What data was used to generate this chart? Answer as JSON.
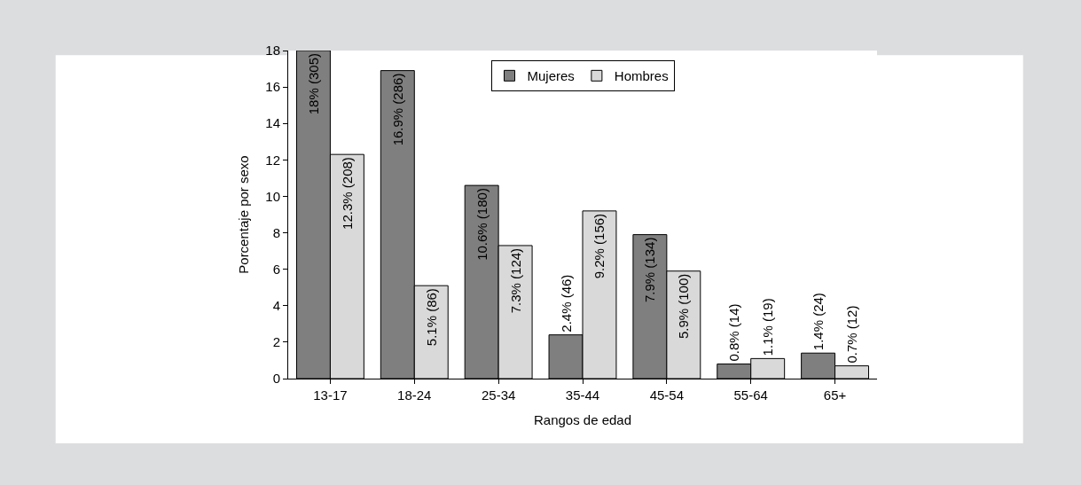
{
  "chart_data": {
    "type": "bar",
    "xlabel": "Rangos de edad",
    "ylabel": "Porcentaje por sexo",
    "categories": [
      "13-17",
      "18-24",
      "25-34",
      "35-44",
      "45-54",
      "55-64",
      "65+"
    ],
    "series": [
      {
        "name": "Mujeres",
        "color": "#7f7f7f",
        "values": [
          18,
          16.9,
          10.6,
          2.4,
          7.9,
          0.8,
          1.4
        ],
        "value_labels": [
          "18% (305)",
          "16.9% (286)",
          "10.6% (180)",
          "2.4% (46)",
          "7.9% (134)",
          "0.8% (14)",
          "1.4% (24)"
        ]
      },
      {
        "name": "Hombres",
        "color": "#d9d9d9",
        "values": [
          12.3,
          5.1,
          7.3,
          9.2,
          5.9,
          1.1,
          0.7
        ],
        "value_labels": [
          "12.3% (208)",
          "5.1% (86)",
          "7.3% (124)",
          "9.2% (156)",
          "5.9% (100)",
          "1.1% (19)",
          "0.7% (12)"
        ]
      }
    ],
    "ylim": [
      0,
      18
    ],
    "yticks": [
      0,
      2,
      4,
      6,
      8,
      10,
      12,
      14,
      16,
      18
    ],
    "grid": false,
    "legend": "top"
  }
}
